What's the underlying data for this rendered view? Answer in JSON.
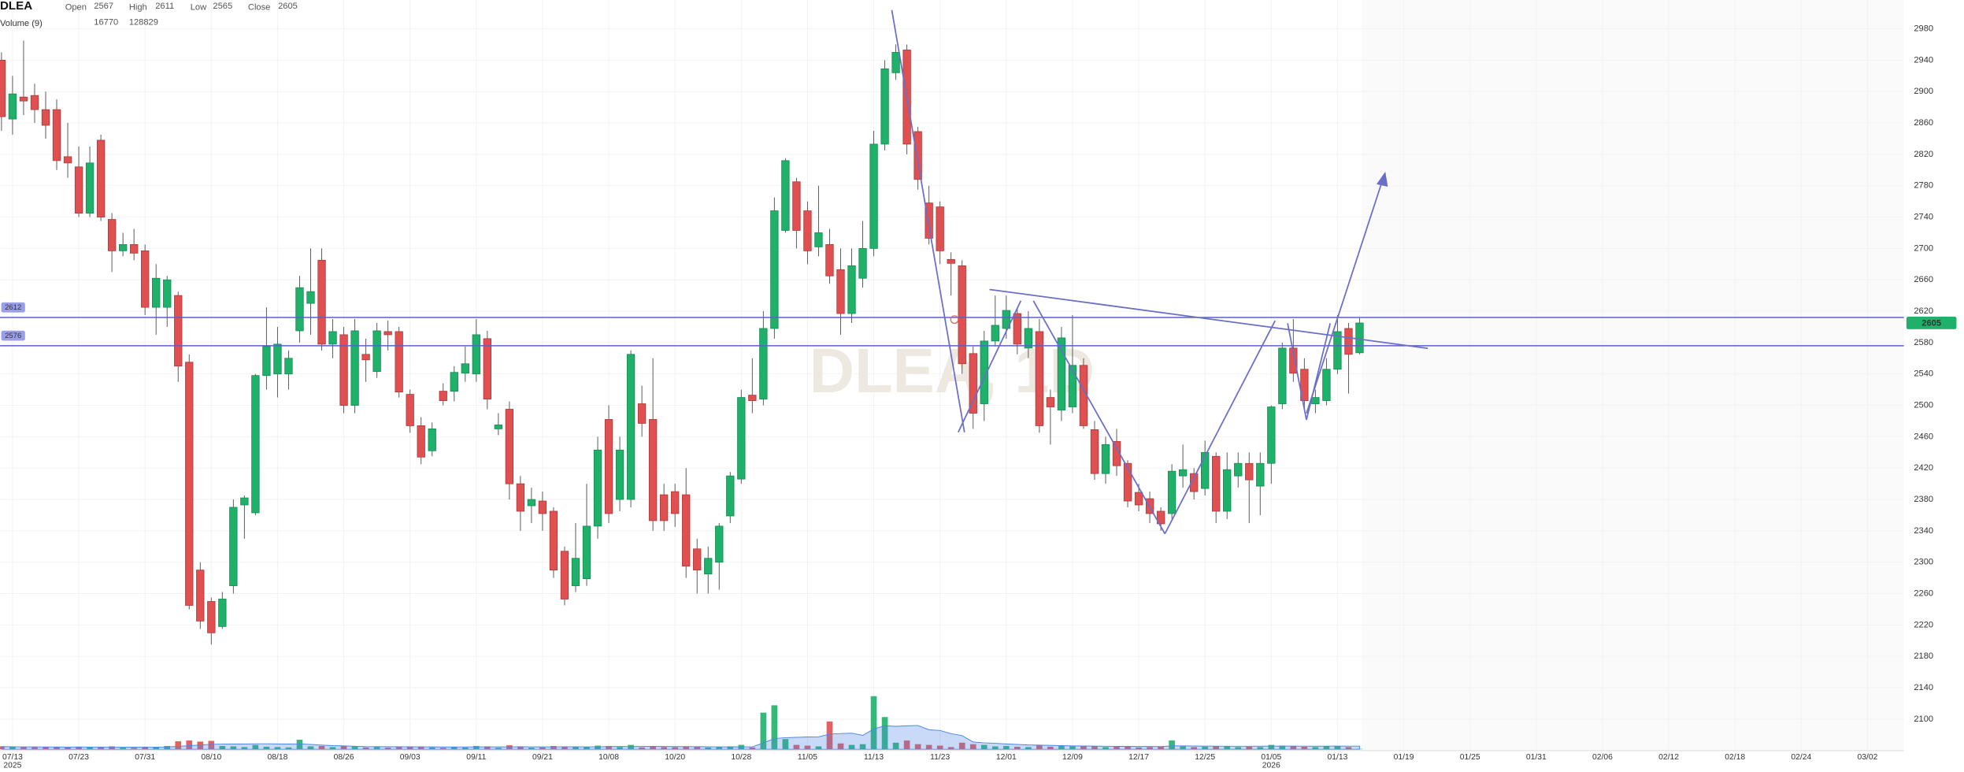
{
  "chart_data": {
    "type": "candlestick",
    "symbol": "DLEA",
    "watermark": "DLEA, 1D",
    "ohlc_labels": [
      "Open",
      "High",
      "Low",
      "Close"
    ],
    "volume_label": "Volume (9)",
    "up_color": "#1fb06a",
    "down_color": "#e05050",
    "ma_color": "#4a86e8",
    "line_color": "#5c5fc9",
    "grid": true,
    "ylim": [
      2061.5,
      3016.7
    ],
    "yticks": [
      2100,
      2140,
      2180,
      2220,
      2260,
      2300,
      2340,
      2380,
      2420,
      2460,
      2500,
      2540,
      2580,
      2620,
      2660,
      2700,
      2740,
      2780,
      2820,
      2860,
      2900,
      2940,
      2980
    ],
    "volume_lim": [
      0,
      4000000
    ],
    "horizontal_lines": [
      2612,
      2576
    ],
    "categories": [
      null,
      "07/13",
      null,
      null,
      null,
      null,
      null,
      "07/23",
      null,
      null,
      null,
      null,
      null,
      "07/31",
      null,
      null,
      null,
      null,
      null,
      "08/10",
      null,
      null,
      null,
      null,
      null,
      "08/18",
      null,
      null,
      null,
      null,
      null,
      "08/26",
      null,
      null,
      null,
      null,
      null,
      "09/03",
      null,
      null,
      null,
      null,
      null,
      "09/11",
      null,
      null,
      null,
      null,
      null,
      "09/21",
      null,
      null,
      null,
      null,
      null,
      "10/08",
      null,
      null,
      null,
      null,
      null,
      "10/20",
      null,
      null,
      null,
      null,
      null,
      "10/28",
      null,
      null,
      null,
      null,
      null,
      "11/05",
      null,
      null,
      null,
      null,
      null,
      "11/13",
      null,
      null,
      null,
      null,
      null,
      "11/23",
      null,
      null,
      null,
      null,
      null,
      "12/01",
      null,
      null,
      null,
      null,
      null,
      "12/09",
      null,
      null,
      null,
      null,
      null,
      "12/17",
      null,
      null,
      null,
      null,
      null,
      "12/25",
      null,
      null,
      null,
      null,
      null,
      "01/05",
      null,
      null,
      null,
      null,
      null,
      "01/13",
      null,
      null,
      null,
      null,
      null,
      "01/19",
      null,
      null,
      null,
      null,
      null,
      "01/25",
      null,
      null,
      null,
      null,
      null,
      "01/31",
      null,
      null,
      null,
      null,
      null,
      "02/06",
      null,
      null,
      null,
      null,
      null,
      "02/12",
      null,
      null,
      null,
      null,
      null,
      "02/18",
      null,
      null,
      null,
      null,
      null,
      "02/24",
      null,
      null,
      null,
      null,
      null,
      "03/02",
      null,
      null,
      null
    ],
    "category_sublabels": [
      null,
      "2025",
      null,
      null,
      null,
      null,
      null,
      null,
      null,
      null,
      null,
      null,
      null,
      null,
      null,
      null,
      null,
      null,
      null,
      null,
      null,
      null,
      null,
      null,
      null,
      null,
      null,
      null,
      null,
      null,
      null,
      null,
      null,
      null,
      null,
      null,
      null,
      null,
      null,
      null,
      null,
      null,
      null,
      null,
      null,
      null,
      null,
      null,
      null,
      null,
      null,
      null,
      null,
      null,
      null,
      null,
      null,
      null,
      null,
      null,
      null,
      null,
      null,
      null,
      null,
      null,
      null,
      null,
      null,
      null,
      null,
      null,
      null,
      null,
      null,
      null,
      null,
      null,
      null,
      null,
      null,
      null,
      null,
      null,
      null,
      null,
      null,
      null,
      null,
      null,
      null,
      null,
      null,
      null,
      null,
      null,
      null,
      null,
      null,
      null,
      null,
      null,
      null,
      null,
      null,
      null,
      null,
      null,
      null,
      null,
      null,
      null,
      null,
      null,
      null,
      "2026",
      null,
      null,
      null,
      null,
      null,
      null,
      null,
      null,
      null,
      null,
      null,
      null,
      null,
      null,
      null,
      null,
      null,
      null,
      null,
      null,
      null,
      null,
      null,
      null,
      null,
      null,
      null,
      null,
      null,
      null,
      null,
      null,
      null,
      null,
      null,
      null,
      null,
      null,
      null,
      null,
      null,
      null,
      null,
      null,
      null,
      null,
      null,
      null,
      null,
      null,
      null,
      null,
      null,
      null,
      null,
      null,
      null,
      null
    ],
    "open": [
      2940,
      2865,
      2893,
      2895,
      2877,
      2877,
      2817,
      2804,
      2745,
      2838,
      2737,
      2697,
      2705,
      2697,
      2625,
      2625,
      2640,
      2555,
      2290,
      2250,
      2218,
      2270,
      2373,
      2363,
      2538,
      2540,
      2540,
      2595,
      2630,
      2685,
      2578,
      2590,
      2500,
      2565,
      2543,
      2594,
      2594,
      2514,
      2474,
      2442,
      2518,
      2518,
      2541,
      2540,
      2585,
      2470,
      2495,
      2400,
      2372,
      2378,
      2365,
      2314,
      2270,
      2279,
      2346,
      2482,
      2380,
      2380,
      2502,
      2482,
      2386,
      2390,
      2386,
      2317,
      2285,
      2300,
      2359,
      2406,
      2513,
      2508,
      2598,
      2723,
      2785,
      2748,
      2702,
      2705,
      2673,
      2617,
      2662,
      2700,
      2833,
      2924,
      2953,
      2849,
      2758,
      2753,
      2686,
      2678,
      2566,
      2502,
      2582,
      2598,
      2617,
      2573,
      2594,
      2510,
      2494,
      2498,
      2551,
      2469,
      2413,
      2454,
      2426,
      2389,
      2381,
      2365,
      2362,
      2410,
      2413,
      2394,
      2435,
      2365,
      2410,
      2426,
      2397,
      2426,
      2502,
      2573,
      2546,
      2502,
      2506,
      2546,
      2598,
      2567,
      null,
      null,
      null,
      null,
      null,
      null,
      null,
      null,
      null,
      null,
      null,
      null,
      null,
      null,
      null,
      null,
      null,
      null,
      null,
      null,
      null,
      null,
      null,
      null,
      null,
      null,
      null,
      null,
      null,
      null,
      null,
      null,
      null,
      null,
      null,
      null,
      null,
      null,
      null,
      null,
      null,
      null,
      null,
      null,
      null,
      null,
      null,
      null,
      null
    ],
    "high": [
      2950,
      2920,
      2965,
      2910,
      2900,
      2890,
      2860,
      2830,
      2830,
      2845,
      2745,
      2720,
      2725,
      2705,
      2680,
      2665,
      2645,
      2565,
      2300,
      2255,
      2262,
      2380,
      2385,
      2540,
      2625,
      2600,
      2570,
      2665,
      2700,
      2700,
      2610,
      2600,
      2610,
      2585,
      2605,
      2608,
      2600,
      2520,
      2485,
      2478,
      2528,
      2550,
      2575,
      2610,
      2595,
      2490,
      2505,
      2410,
      2395,
      2390,
      2370,
      2320,
      2350,
      2400,
      2460,
      2500,
      2460,
      2570,
      2525,
      2560,
      2400,
      2400,
      2420,
      2330,
      2320,
      2350,
      2415,
      2520,
      2560,
      2620,
      2765,
      2815,
      2790,
      2760,
      2780,
      2725,
      2700,
      2700,
      2735,
      2850,
      2940,
      2960,
      2960,
      2855,
      2780,
      2760,
      2695,
      2685,
      2575,
      2595,
      2640,
      2640,
      2625,
      2620,
      2610,
      2520,
      2600,
      2615,
      2560,
      2480,
      2460,
      2470,
      2430,
      2400,
      2390,
      2370,
      2425,
      2450,
      2420,
      2455,
      2440,
      2440,
      2440,
      2440,
      2440,
      2500,
      2580,
      2610,
      2560,
      2520,
      2560,
      2615,
      2605,
      2611,
      null,
      null,
      null,
      null,
      null,
      null,
      null,
      null,
      null,
      null,
      null,
      null,
      null,
      null,
      null,
      null,
      null,
      null,
      null,
      null,
      null,
      null,
      null,
      null,
      null,
      null,
      null,
      null,
      null,
      null,
      null,
      null,
      null,
      null,
      null,
      null,
      null,
      null,
      null,
      null,
      null,
      null,
      null,
      null,
      null,
      null,
      null,
      null,
      null
    ],
    "low": [
      2850,
      2845,
      2870,
      2860,
      2840,
      2800,
      2790,
      2740,
      2740,
      2735,
      2670,
      2690,
      2685,
      2615,
      2590,
      2600,
      2530,
      2240,
      2215,
      2195,
      2215,
      2260,
      2330,
      2360,
      2520,
      2510,
      2520,
      2580,
      2590,
      2570,
      2560,
      2490,
      2490,
      2530,
      2535,
      2570,
      2510,
      2465,
      2425,
      2435,
      2500,
      2505,
      2530,
      2530,
      2495,
      2462,
      2380,
      2340,
      2350,
      2340,
      2280,
      2245,
      2262,
      2270,
      2330,
      2350,
      2365,
      2370,
      2460,
      2340,
      2340,
      2345,
      2280,
      2260,
      2260,
      2265,
      2350,
      2400,
      2490,
      2500,
      2585,
      2720,
      2700,
      2680,
      2690,
      2655,
      2590,
      2605,
      2650,
      2690,
      2825,
      2915,
      2820,
      2775,
      2705,
      2680,
      2640,
      2540,
      2470,
      2480,
      2575,
      2585,
      2565,
      2560,
      2465,
      2450,
      2480,
      2490,
      2470,
      2405,
      2400,
      2410,
      2370,
      2365,
      2350,
      2340,
      2355,
      2395,
      2380,
      2385,
      2350,
      2355,
      2395,
      2350,
      2360,
      2400,
      2495,
      2530,
      2495,
      2490,
      2500,
      2540,
      2515,
      2565,
      null,
      null,
      null,
      null,
      null,
      null,
      null,
      null,
      null,
      null,
      null,
      null,
      null,
      null,
      null,
      null,
      null,
      null,
      null,
      null,
      null,
      null,
      null,
      null,
      null,
      null,
      null,
      null,
      null,
      null,
      null,
      null,
      null,
      null,
      null,
      null,
      null,
      null,
      null,
      null,
      null,
      null,
      null,
      null,
      null,
      null,
      null,
      null,
      null
    ],
    "close": [
      2868,
      2897,
      2888,
      2877,
      2857,
      2812,
      2809,
      2745,
      2809,
      2740,
      2697,
      2705,
      2694,
      2625,
      2662,
      2660,
      2550,
      2245,
      2225,
      2210,
      2253,
      2370,
      2382,
      2538,
      2575,
      2578,
      2560,
      2650,
      2645,
      2578,
      2594,
      2500,
      2595,
      2558,
      2595,
      2590,
      2517,
      2474,
      2434,
      2470,
      2506,
      2542,
      2553,
      2590,
      2508,
      2475,
      2400,
      2365,
      2380,
      2362,
      2290,
      2253,
      2305,
      2346,
      2443,
      2362,
      2443,
      2565,
      2477,
      2353,
      2353,
      2362,
      2295,
      2290,
      2305,
      2346,
      2410,
      2510,
      2506,
      2598,
      2748,
      2812,
      2723,
      2697,
      2720,
      2665,
      2617,
      2678,
      2700,
      2833,
      2929,
      2950,
      2833,
      2788,
      2713,
      2697,
      2681,
      2553,
      2490,
      2582,
      2602,
      2621,
      2578,
      2598,
      2474,
      2498,
      2586,
      2551,
      2474,
      2413,
      2450,
      2423,
      2378,
      2373,
      2362,
      2349,
      2416,
      2418,
      2390,
      2440,
      2365,
      2418,
      2426,
      2405,
      2426,
      2498,
      2573,
      2541,
      2506,
      2510,
      2546,
      2594,
      2565,
      2605,
      null,
      null,
      null,
      null,
      null,
      null,
      null,
      null,
      null,
      null,
      null,
      null,
      null,
      null,
      null,
      null,
      null,
      null,
      null,
      null,
      null,
      null,
      null,
      null,
      null,
      null,
      null,
      null,
      null,
      null,
      null,
      null,
      null,
      null,
      null,
      null,
      null,
      null,
      null,
      null,
      null,
      null,
      null,
      null,
      null,
      null,
      null,
      null,
      null
    ],
    "volume": [
      120000,
      105000,
      90000,
      84000,
      96000,
      90000,
      75000,
      105000,
      90000,
      84000,
      120000,
      66000,
      60000,
      105000,
      90000,
      135000,
      330000,
      360000,
      315000,
      345000,
      135000,
      120000,
      90000,
      180000,
      105000,
      90000,
      75000,
      390000,
      120000,
      135000,
      90000,
      150000,
      120000,
      75000,
      105000,
      66000,
      120000,
      105000,
      114000,
      75000,
      60000,
      90000,
      75000,
      135000,
      120000,
      60000,
      165000,
      120000,
      66000,
      75000,
      135000,
      120000,
      90000,
      105000,
      150000,
      135000,
      90000,
      180000,
      75000,
      135000,
      90000,
      84000,
      120000,
      105000,
      75000,
      90000,
      120000,
      180000,
      75000,
      1500000,
      1800000,
      420000,
      180000,
      150000,
      120000,
      1140000,
      240000,
      180000,
      210000,
      2175000,
      1320000,
      270000,
      360000,
      210000,
      180000,
      150000,
      90000,
      270000,
      210000,
      180000,
      120000,
      135000,
      105000,
      90000,
      180000,
      105000,
      135000,
      120000,
      150000,
      120000,
      90000,
      105000,
      120000,
      75000,
      90000,
      105000,
      360000,
      120000,
      90000,
      105000,
      120000,
      135000,
      90000,
      105000,
      90000,
      180000,
      150000,
      120000,
      105000,
      90000,
      120000,
      135000,
      90000,
      16770,
      null,
      null,
      null,
      null,
      null,
      null,
      null,
      null,
      null,
      null,
      null,
      null,
      null,
      null,
      null,
      null,
      null,
      null,
      null,
      null,
      null,
      null,
      null,
      null,
      null,
      null,
      null,
      null,
      null,
      null,
      null,
      null,
      null,
      null,
      null,
      null,
      null,
      null,
      null,
      null,
      null,
      null,
      null,
      null,
      null,
      null,
      null,
      null,
      null
    ],
    "volume_ma": [
      110000,
      105000,
      100000,
      98000,
      96000,
      94000,
      92000,
      95000,
      93000,
      92000,
      93000,
      89000,
      86000,
      88000,
      89000,
      94000,
      120000,
      150000,
      175000,
      205000,
      210000,
      215000,
      215000,
      225000,
      225000,
      220000,
      215000,
      222000,
      200000,
      170000,
      150000,
      140000,
      125000,
      110000,
      108000,
      106000,
      104000,
      103000,
      100000,
      98000,
      95000,
      96000,
      97000,
      98000,
      100000,
      98000,
      100000,
      102000,
      100000,
      98000,
      100000,
      105000,
      102000,
      100000,
      103000,
      110000,
      115000,
      112000,
      115000,
      118000,
      115000,
      112000,
      110000,
      108000,
      105000,
      100000,
      98000,
      102000,
      100000,
      260000,
      440000,
      475000,
      490000,
      505000,
      510000,
      625000,
      645000,
      660000,
      570000,
      835000,
      960000,
      940000,
      960000,
      975000,
      800000,
      770000,
      640000,
      560000,
      300000,
      265000,
      245000,
      220000,
      200000,
      180000,
      170000,
      160000,
      150000,
      140000,
      135000,
      130000,
      125000,
      120000,
      118000,
      115000,
      115000,
      112000,
      140000,
      140000,
      135000,
      130000,
      128000,
      125000,
      125000,
      124000,
      126000,
      130000,
      132000,
      130000,
      128000,
      127000,
      128000,
      130000,
      129000,
      128829,
      null,
      null,
      null,
      null,
      null,
      null,
      null,
      null,
      null,
      null,
      null,
      null,
      null,
      null,
      null,
      null,
      null,
      null,
      null,
      null,
      null,
      null,
      null,
      null,
      null,
      null,
      null,
      null,
      null,
      null,
      null,
      null,
      null,
      null,
      null,
      null,
      null,
      null,
      null,
      null,
      null,
      null,
      null,
      null,
      null,
      null,
      null,
      null,
      null
    ]
  }
}
